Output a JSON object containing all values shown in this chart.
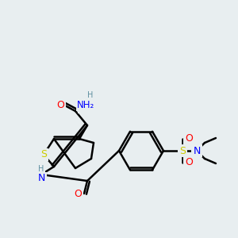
{
  "background_color": "#e8eef0",
  "bond_color": "#000000",
  "bond_width": 1.8,
  "atom_colors": {
    "C": "#000000",
    "H": "#5f8fa0",
    "N": "#0000ff",
    "O": "#ff0000",
    "S": "#cccc00"
  },
  "figsize": [
    3.0,
    3.0
  ],
  "dpi": 100
}
